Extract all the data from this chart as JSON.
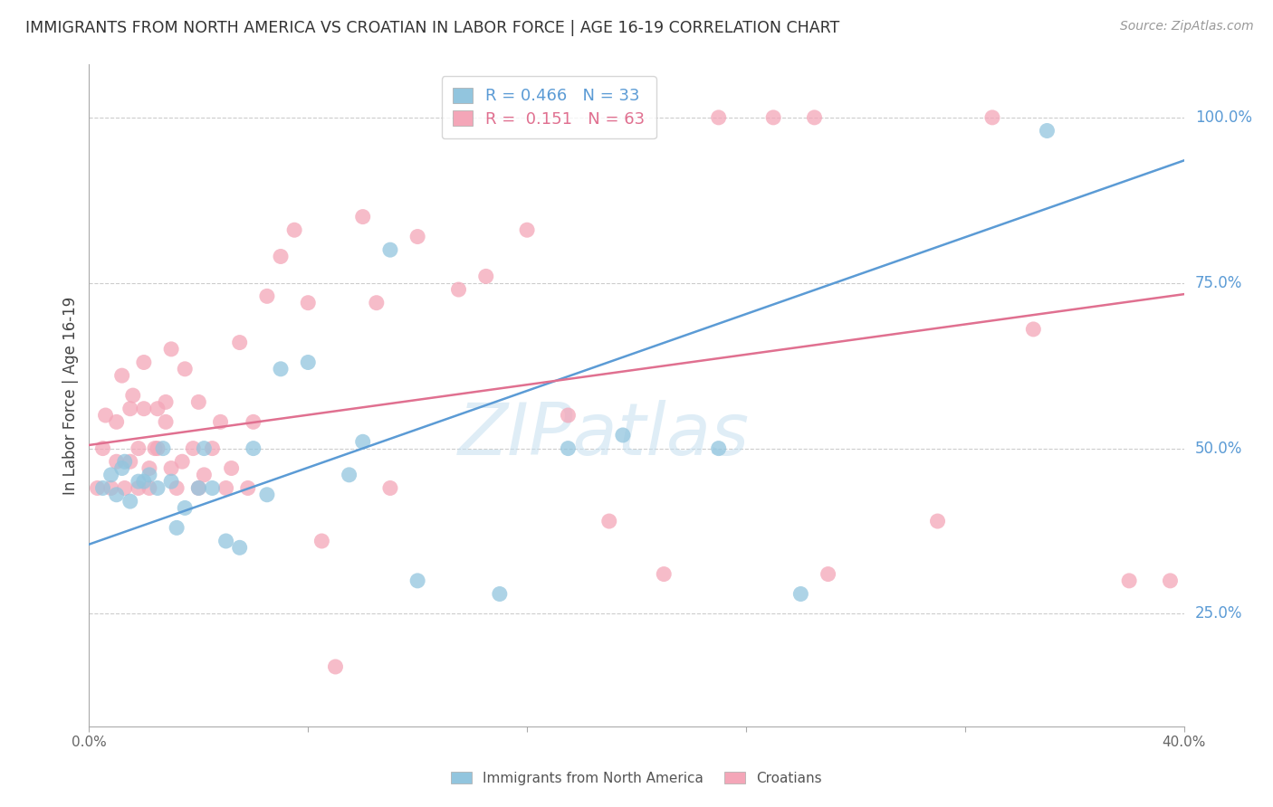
{
  "title": "IMMIGRANTS FROM NORTH AMERICA VS CROATIAN IN LABOR FORCE | AGE 16-19 CORRELATION CHART",
  "source": "Source: ZipAtlas.com",
  "ylabel": "In Labor Force | Age 16-19",
  "xlim": [
    0.0,
    0.4
  ],
  "ylim": [
    0.08,
    1.08
  ],
  "yticks": [
    0.25,
    0.5,
    0.75,
    1.0
  ],
  "ytick_labels": [
    "25.0%",
    "50.0%",
    "75.0%",
    "100.0%"
  ],
  "blue_R": "0.466",
  "blue_N": "33",
  "pink_R": "0.151",
  "pink_N": "63",
  "blue_color": "#92c5de",
  "pink_color": "#f4a6b8",
  "blue_line_color": "#5b9bd5",
  "pink_line_color": "#e07090",
  "blue_line_intercept": 0.355,
  "blue_line_slope": 1.45,
  "pink_line_intercept": 0.505,
  "pink_line_slope": 0.57,
  "blue_scatter_x": [
    0.005,
    0.008,
    0.01,
    0.012,
    0.013,
    0.015,
    0.018,
    0.02,
    0.022,
    0.025,
    0.027,
    0.03,
    0.032,
    0.035,
    0.04,
    0.042,
    0.045,
    0.05,
    0.055,
    0.06,
    0.065,
    0.07,
    0.08,
    0.095,
    0.1,
    0.11,
    0.12,
    0.15,
    0.175,
    0.195,
    0.23,
    0.26,
    0.35
  ],
  "blue_scatter_y": [
    0.44,
    0.46,
    0.43,
    0.47,
    0.48,
    0.42,
    0.45,
    0.45,
    0.46,
    0.44,
    0.5,
    0.45,
    0.38,
    0.41,
    0.44,
    0.5,
    0.44,
    0.36,
    0.35,
    0.5,
    0.43,
    0.62,
    0.63,
    0.46,
    0.51,
    0.8,
    0.3,
    0.28,
    0.5,
    0.52,
    0.5,
    0.28,
    0.98
  ],
  "pink_scatter_x": [
    0.003,
    0.005,
    0.006,
    0.008,
    0.01,
    0.01,
    0.012,
    0.013,
    0.015,
    0.015,
    0.016,
    0.018,
    0.018,
    0.02,
    0.02,
    0.022,
    0.022,
    0.024,
    0.025,
    0.025,
    0.028,
    0.028,
    0.03,
    0.03,
    0.032,
    0.034,
    0.035,
    0.038,
    0.04,
    0.04,
    0.042,
    0.045,
    0.048,
    0.05,
    0.052,
    0.055,
    0.058,
    0.06,
    0.065,
    0.07,
    0.075,
    0.08,
    0.085,
    0.09,
    0.1,
    0.105,
    0.11,
    0.12,
    0.135,
    0.145,
    0.16,
    0.175,
    0.19,
    0.21,
    0.23,
    0.25,
    0.265,
    0.27,
    0.31,
    0.33,
    0.345,
    0.38,
    0.395
  ],
  "pink_scatter_y": [
    0.44,
    0.5,
    0.55,
    0.44,
    0.48,
    0.54,
    0.61,
    0.44,
    0.48,
    0.56,
    0.58,
    0.44,
    0.5,
    0.56,
    0.63,
    0.44,
    0.47,
    0.5,
    0.56,
    0.5,
    0.54,
    0.57,
    0.47,
    0.65,
    0.44,
    0.48,
    0.62,
    0.5,
    0.44,
    0.57,
    0.46,
    0.5,
    0.54,
    0.44,
    0.47,
    0.66,
    0.44,
    0.54,
    0.73,
    0.79,
    0.83,
    0.72,
    0.36,
    0.17,
    0.85,
    0.72,
    0.44,
    0.82,
    0.74,
    0.76,
    0.83,
    0.55,
    0.39,
    0.31,
    1.0,
    1.0,
    1.0,
    0.31,
    0.39,
    1.0,
    0.68,
    0.3,
    0.3
  ],
  "watermark_text": "ZIPatlas",
  "watermark_color": "#c5dff0",
  "background_color": "#ffffff",
  "grid_color": "#cccccc",
  "axis_color": "#aaaaaa",
  "title_color": "#333333",
  "right_tick_color": "#5b9bd5",
  "source_color": "#999999",
  "bottom_legend_color": "#555555"
}
